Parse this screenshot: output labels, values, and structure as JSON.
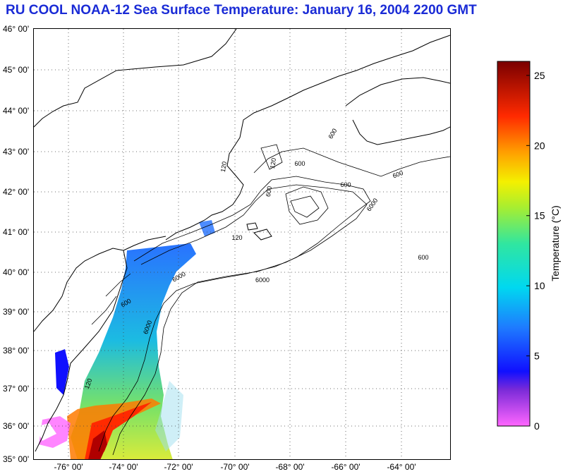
{
  "title": "RU COOL  NOAA-12  Sea Surface Temperature:  January 16, 2004 2200 GMT",
  "map": {
    "lat_labels": [
      "46° 00'",
      "45° 00'",
      "44° 00'",
      "43° 00'",
      "42° 00'",
      "41° 00'",
      "40° 00'",
      "39° 00'",
      "38° 00'",
      "37° 00'",
      "36° 00'",
      "35° 00'"
    ],
    "lon_labels": [
      "-76° 00'",
      "-74° 00'",
      "-72° 00'",
      "-70° 00'",
      "-68° 00'",
      "-66° 00'",
      "-64° 00'"
    ],
    "contour_labels": [
      "600",
      "6000",
      "600",
      "600",
      "6000",
      "600",
      "6000",
      "600",
      "600",
      "120",
      "120",
      "120",
      "600",
      "6000",
      "120"
    ]
  },
  "colorbar": {
    "label": "Temperature (°C)",
    "ticks": [
      "0",
      "5",
      "10",
      "15",
      "20",
      "25"
    ],
    "tick_values": [
      0,
      5,
      10,
      15,
      20,
      25
    ],
    "min": 0,
    "max": 26
  },
  "colors": {
    "title": "#1a2bd6",
    "grid": "#444444",
    "coast": "#000000"
  }
}
